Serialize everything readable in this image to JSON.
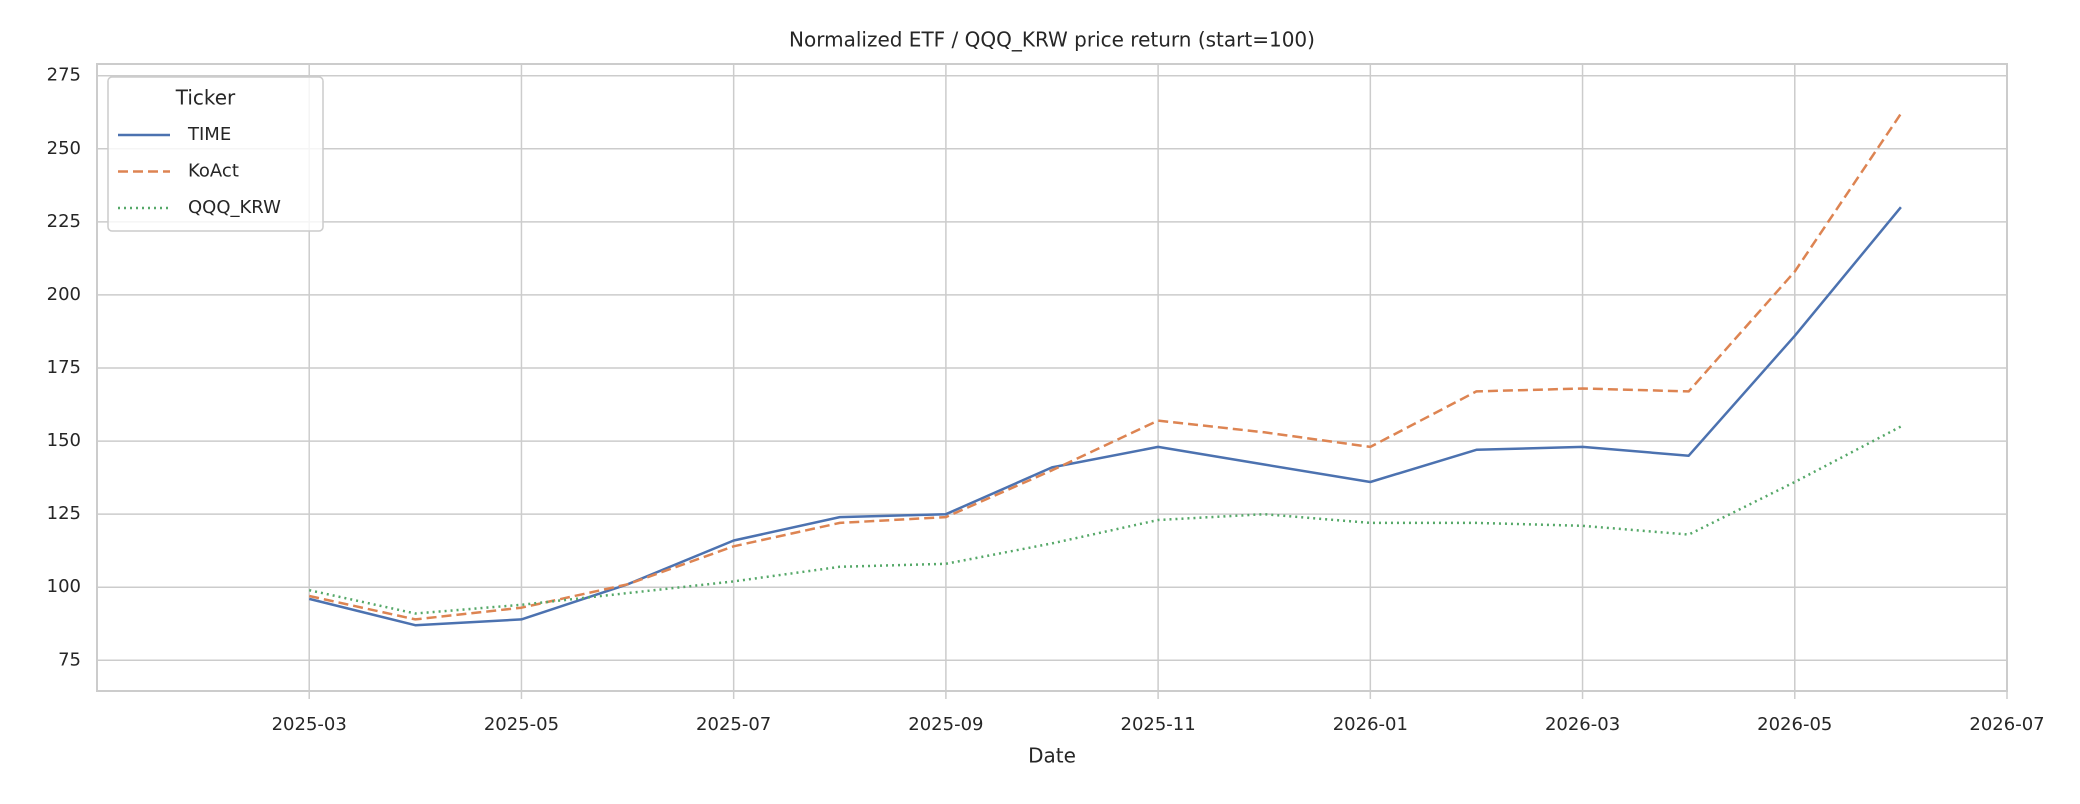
{
  "chart_data": {
    "type": "line",
    "title": "Normalized ETF / QQQ_KRW price return (start=100)",
    "x_label": "Date",
    "legend_title": "Ticker",
    "legend": "upper left",
    "grid": true,
    "x": [
      "2025-03",
      "2025-04",
      "2025-05",
      "2025-06",
      "2025-07",
      "2025-08",
      "2025-09",
      "2025-10",
      "2025-11",
      "2025-12",
      "2026-01",
      "2026-02",
      "2026-03",
      "2026-04",
      "2026-05",
      "2026-06"
    ],
    "series": [
      {
        "name": "TIME",
        "color": "#4c72b0",
        "linestyle": "solid",
        "values": [
          96,
          87,
          89,
          101,
          116,
          124,
          125,
          141,
          148,
          142,
          136,
          147,
          148,
          145,
          186,
          230
        ]
      },
      {
        "name": "KoAct",
        "color": "#dd8452",
        "linestyle": "dashed",
        "values": [
          97,
          89,
          93,
          101,
          114,
          122,
          124,
          140,
          157,
          153,
          148,
          167,
          168,
          167,
          208,
          262
        ]
      },
      {
        "name": "QQQ_KRW",
        "color": "#55a868",
        "linestyle": "dotted",
        "values": [
          99,
          91,
          94,
          98,
          102,
          107,
          108,
          115,
          123,
          125,
          122,
          122,
          121,
          118,
          136,
          155
        ]
      }
    ],
    "xlim": [
      "2025-01",
      "2026-07"
    ],
    "xticks": [
      "2025-03",
      "2025-05",
      "2025-07",
      "2025-09",
      "2025-11",
      "2026-01",
      "2026-03",
      "2026-05",
      "2026-07"
    ],
    "ylim": [
      64.5,
      279
    ],
    "yticks": [
      75,
      100,
      125,
      150,
      175,
      200,
      225,
      250,
      275
    ]
  }
}
